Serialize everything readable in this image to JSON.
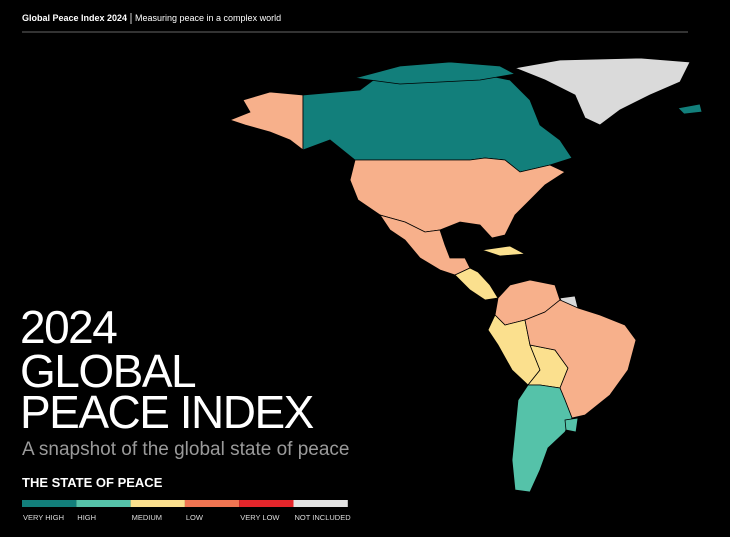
{
  "header": {
    "title": "Global Peace Index 2024",
    "tagline": "Measuring peace in a complex world"
  },
  "cover": {
    "title_lines": [
      "2024",
      "GLOBAL",
      "PEACE INDEX"
    ],
    "subtitle": "A snapshot of the global state of peace"
  },
  "legend": {
    "title": "THE STATE OF PEACE",
    "items": [
      {
        "label": "VERY HIGH",
        "color": "#127f7b"
      },
      {
        "label": "HIGH",
        "color": "#55c2a9"
      },
      {
        "label": "MEDIUM",
        "color": "#fbe08e"
      },
      {
        "label": "LOW",
        "color": "#f07552"
      },
      {
        "label": "VERY LOW",
        "color": "#e4262b"
      },
      {
        "label": "NOT INCLUDED",
        "color": "#e3e3e3"
      }
    ]
  }
}
